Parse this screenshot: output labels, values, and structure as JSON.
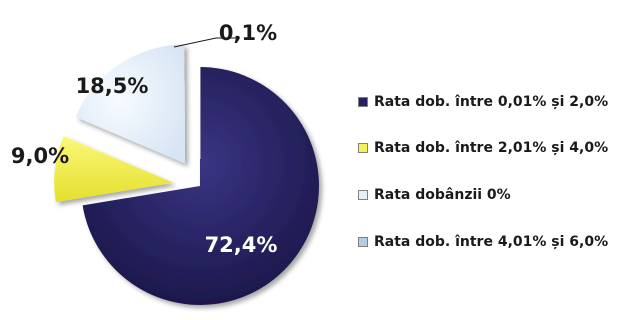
{
  "chart_data": {
    "type": "pie",
    "exploded": true,
    "start_angle_deg": 0,
    "direction": "clockwise",
    "legend_position": "right",
    "slices": [
      {
        "name": "Rata dob. între 0,01% și 2,0%",
        "value": 72.4,
        "label": "72,4%",
        "color": "#262261",
        "exploded": false
      },
      {
        "name": "Rata dob. între 2,01% și 4,0%",
        "value": 9.0,
        "label": "9,0%",
        "color": "#f5f15a",
        "exploded": true
      },
      {
        "name": "Rata dobânzii 0%",
        "value": 18.5,
        "label": "18,5%",
        "color": "#e6f0fa",
        "exploded": true
      },
      {
        "name": "Rata dob. între 4,01% și 6,0%",
        "value": 0.1,
        "label": "0,1%",
        "color": "#b4cce4",
        "exploded": true
      }
    ]
  }
}
